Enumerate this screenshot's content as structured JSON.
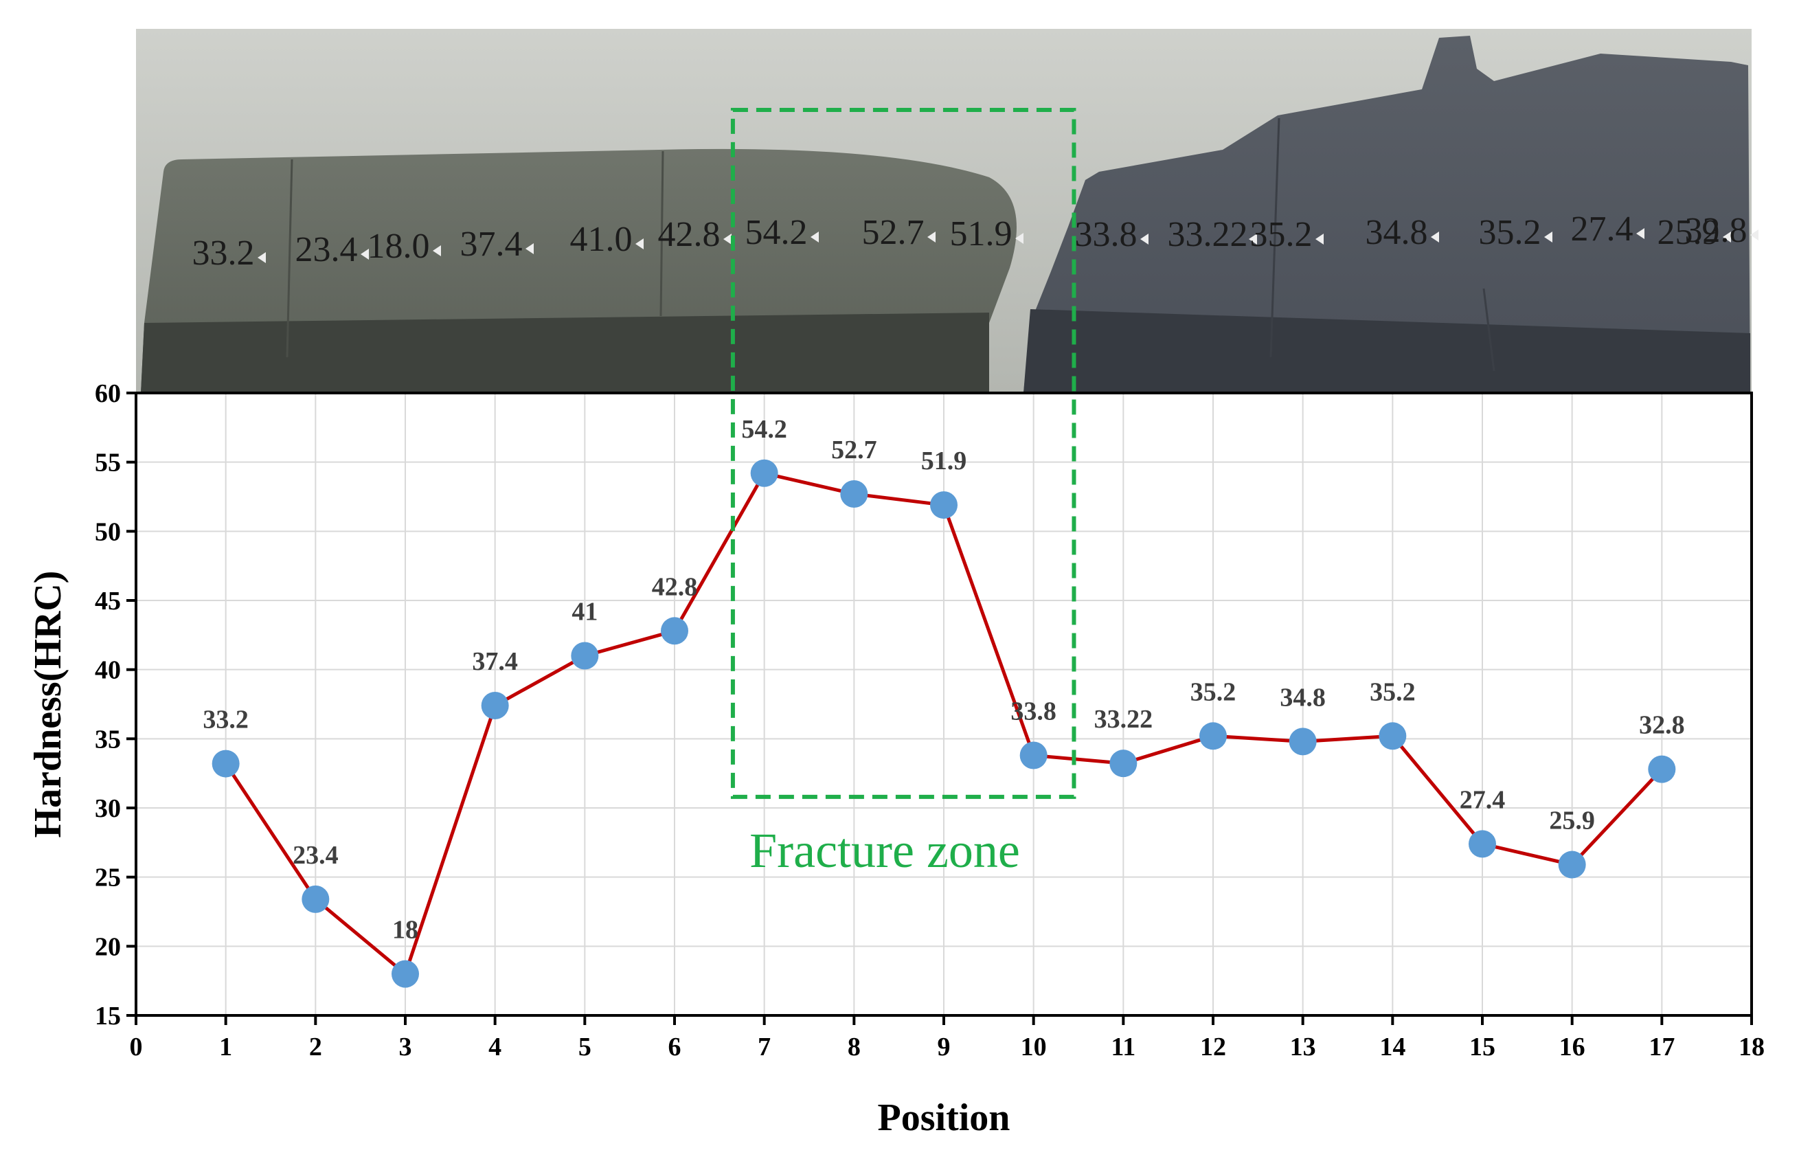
{
  "chart_data": {
    "type": "line",
    "title": "",
    "xlabel": "Position",
    "ylabel": "Hardness(HRC)",
    "x": [
      1,
      2,
      3,
      4,
      5,
      6,
      7,
      8,
      9,
      10,
      11,
      12,
      13,
      14,
      15,
      16,
      17
    ],
    "xlim": [
      0,
      18
    ],
    "ylim": [
      15,
      60
    ],
    "x_ticks": [
      "0",
      "1",
      "2",
      "3",
      "4",
      "5",
      "6",
      "7",
      "8",
      "9",
      "10",
      "11",
      "12",
      "13",
      "14",
      "15",
      "16",
      "17",
      "18"
    ],
    "y_ticks": [
      "15",
      "20",
      "25",
      "30",
      "35",
      "40",
      "45",
      "50",
      "55",
      "60"
    ],
    "grid": true,
    "series": [
      {
        "values": [
          33.2,
          23.4,
          18,
          37.4,
          41,
          42.8,
          54.2,
          52.7,
          51.9,
          33.8,
          33.22,
          35.2,
          34.8,
          35.2,
          27.4,
          25.9,
          32.8
        ],
        "labels": [
          "33.2",
          "23.4",
          "18",
          "37.4",
          "41",
          "42.8",
          "54.2",
          "52.7",
          "51.9",
          "33.8",
          "33.22",
          "35.2",
          "34.8",
          "35.2",
          "27.4",
          "25.9",
          "32.8"
        ],
        "line_color": "#c00000",
        "marker_color": "#5b9bd5"
      }
    ],
    "annotations": [
      {
        "text": "Fracture zone",
        "x_range": [
          6.65,
          10.45
        ],
        "y_range": [
          30.8,
          60
        ],
        "color": "#1fae4a",
        "style": "dashed-rectangle"
      }
    ],
    "photo_labels": [
      "33.2",
      "23.4",
      "18.0",
      "37.4",
      "41.0",
      "42.8",
      "54.2",
      "52.7",
      "51.9",
      "33.8",
      "33.22",
      "35.2",
      "34.8",
      "35.2",
      "27.4",
      "25.9",
      "32.8"
    ]
  },
  "colors": {
    "grid": "#d9d9d9",
    "axis": "#000000",
    "photo_background": "#c4c6c1",
    "sample_dark": "#4b4f4b",
    "sample_face": "#63685f"
  }
}
